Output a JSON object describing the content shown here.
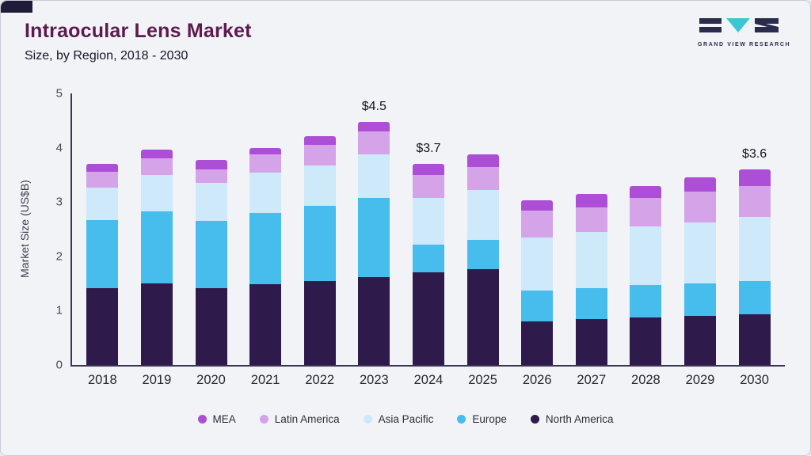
{
  "header": {
    "title": "Intraocular Lens Market",
    "subtitle": "Size, by Region, 2018 - 2030"
  },
  "logo": {
    "text": "GRAND VIEW RESEARCH",
    "dark_color": "#2b2b4c",
    "teal_color": "#3ec6d0"
  },
  "chart_data": {
    "type": "bar",
    "stacked": true,
    "title": "Intraocular Lens Market Size, by Region, 2018 - 2030",
    "ylabel": "Market Size (US$B)",
    "xlabel": "",
    "ylim": [
      0,
      5
    ],
    "yticks": [
      0,
      1,
      2,
      3,
      4,
      5
    ],
    "grid": false,
    "legend_position": "bottom",
    "categories": [
      "2018",
      "2019",
      "2020",
      "2021",
      "2022",
      "2023",
      "2024",
      "2025",
      "2026",
      "2027",
      "2028",
      "2029",
      "2030"
    ],
    "series": [
      {
        "name": "MEA",
        "color": "#ad4fd6",
        "values": [
          0.15,
          0.17,
          0.17,
          0.12,
          0.17,
          0.17,
          0.2,
          0.23,
          0.18,
          0.25,
          0.22,
          0.25,
          0.3
        ]
      },
      {
        "name": "Latin America",
        "color": "#d4a3e8",
        "values": [
          0.28,
          0.3,
          0.25,
          0.33,
          0.37,
          0.42,
          0.43,
          0.43,
          0.5,
          0.45,
          0.53,
          0.57,
          0.57
        ]
      },
      {
        "name": "Asia Pacific",
        "color": "#cde9fa",
        "values": [
          0.6,
          0.67,
          0.69,
          0.75,
          0.75,
          0.81,
          0.85,
          0.92,
          0.98,
          1.03,
          1.08,
          1.13,
          1.18
        ]
      },
      {
        "name": "Europe",
        "color": "#47bdee",
        "values": [
          1.25,
          1.33,
          1.24,
          1.32,
          1.38,
          1.45,
          0.52,
          0.53,
          0.57,
          0.58,
          0.6,
          0.6,
          0.62
        ]
      },
      {
        "name": "North America",
        "color": "#2f1a4c",
        "values": [
          1.42,
          1.5,
          1.42,
          1.48,
          1.55,
          1.62,
          1.7,
          1.77,
          0.8,
          0.84,
          0.87,
          0.9,
          0.93
        ]
      }
    ],
    "annotations": [
      {
        "category": "2023",
        "label": "$4.5"
      },
      {
        "category": "2024",
        "label": "$3.7"
      },
      {
        "category": "2030",
        "label": "$3.6"
      }
    ]
  }
}
